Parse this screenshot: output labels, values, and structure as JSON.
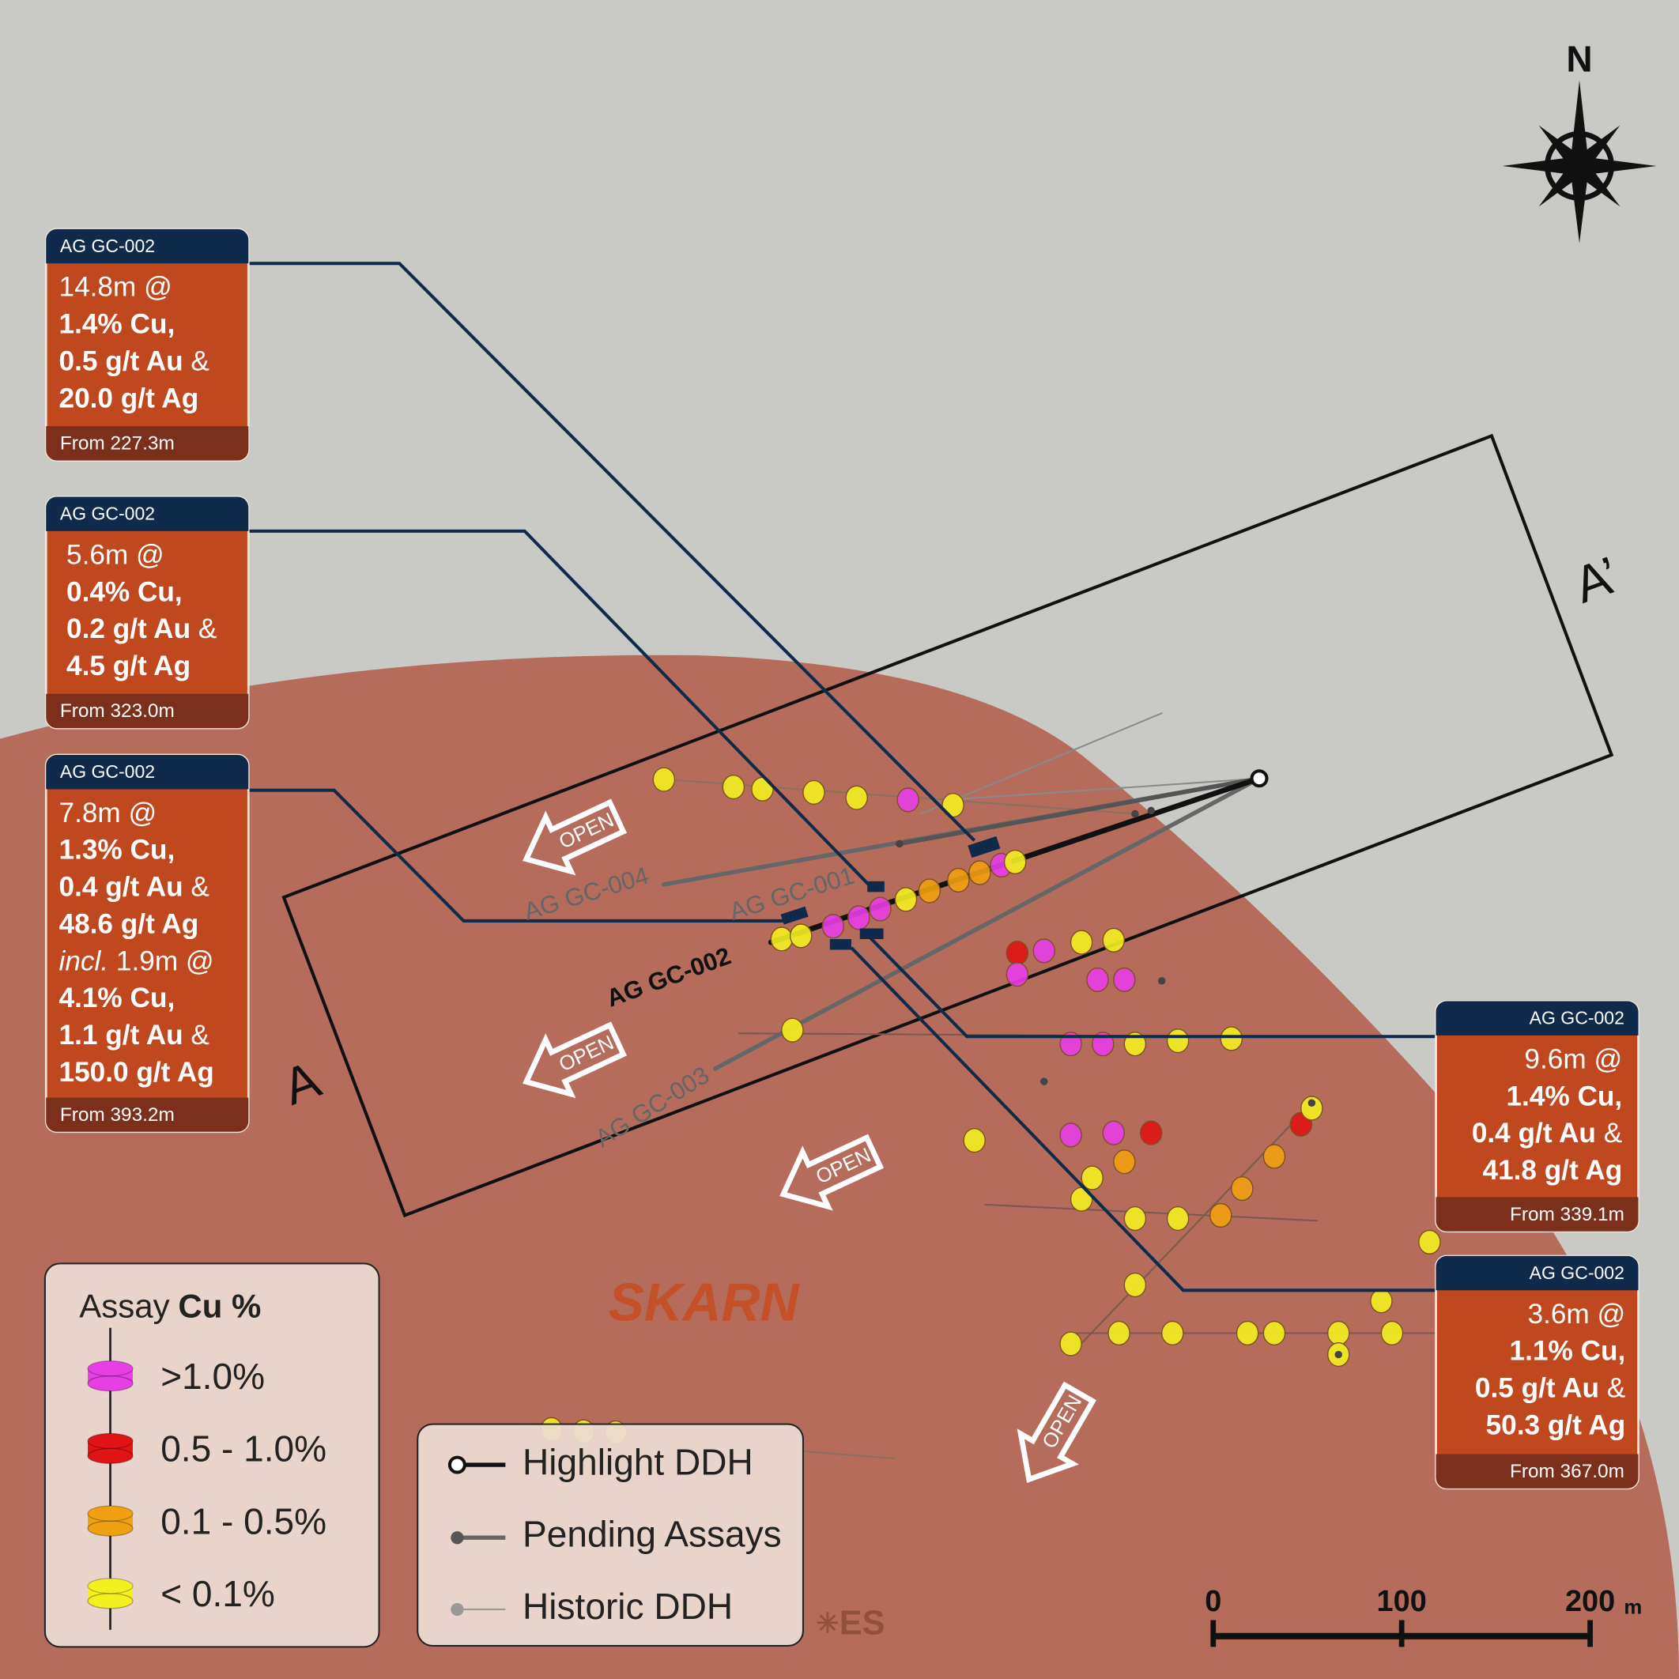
{
  "north": "N",
  "callouts": [
    {
      "hole": "AG GC-002",
      "lines": [
        [
          {
            "text": "14.8m @"
          }
        ],
        [
          {
            "text": "1.4% Cu,",
            "style": "bold"
          }
        ],
        [
          {
            "text": "0.5 g/t Au",
            "style": "bold"
          },
          {
            "text": " &"
          }
        ],
        [
          {
            "text": "20.0 g/t Ag",
            "style": "bold"
          }
        ]
      ],
      "from": "From 227.3m"
    },
    {
      "hole": "AG GC-002",
      "lines": [
        [
          {
            "text": "5.6m @"
          }
        ],
        [
          {
            "text": "0.4% Cu,",
            "style": "bold"
          }
        ],
        [
          {
            "text": "0.2 g/t Au",
            "style": "bold"
          },
          {
            "text": " &"
          }
        ],
        [
          {
            "text": "4.5 g/t Ag",
            "style": "bold"
          }
        ]
      ],
      "from": "From 323.0m"
    },
    {
      "hole": "AG GC-002",
      "lines": [
        [
          {
            "text": "7.8m @"
          }
        ],
        [
          {
            "text": "1.3% Cu,",
            "style": "bold"
          }
        ],
        [
          {
            "text": "0.4 g/t Au",
            "style": "bold"
          },
          {
            "text": " &"
          }
        ],
        [
          {
            "text": "48.6 g/t Ag",
            "style": "bold"
          }
        ],
        [
          {
            "text": "incl.",
            "style": "italic"
          },
          {
            "text": " 1.9m @"
          }
        ],
        [
          {
            "text": "4.1% Cu,",
            "style": "bold"
          }
        ],
        [
          {
            "text": "1.1 g/t Au",
            "style": "bold"
          },
          {
            "text": " &"
          }
        ],
        [
          {
            "text": "150.0 g/t Ag",
            "style": "bold"
          }
        ]
      ],
      "from": "From 393.2m"
    },
    {
      "hole": "AG GC-002",
      "lines": [
        [
          {
            "text": "9.6m @"
          }
        ],
        [
          {
            "text": "1.4% Cu,",
            "style": "bold"
          }
        ],
        [
          {
            "text": "0.4 g/t Au",
            "style": "bold"
          },
          {
            "text": " &"
          }
        ],
        [
          {
            "text": "41.8 g/t Ag",
            "style": "bold"
          }
        ]
      ],
      "from": "From 339.1m"
    },
    {
      "hole": "AG GC-002",
      "lines": [
        [
          {
            "text": "3.6m @"
          }
        ],
        [
          {
            "text": "1.1% Cu,",
            "style": "bold"
          }
        ],
        [
          {
            "text": "0.5 g/t Au",
            "style": "bold"
          },
          {
            "text": " &"
          }
        ],
        [
          {
            "text": "50.3 g/t Ag",
            "style": "bold"
          }
        ]
      ],
      "from": "From 367.0m"
    }
  ],
  "section": {
    "start": "A",
    "end": "A’"
  },
  "holes": [
    "AG GC-004",
    "AG GC-001",
    "AG GC-002",
    "AG GC-003"
  ],
  "unit": "SKARN",
  "open_labels": [
    "OPEN",
    "OPEN",
    "OPEN",
    "OPEN"
  ],
  "assay_legend": {
    "title": "Assay",
    "title_bold": "Cu %",
    "items": [
      {
        "label": ">1.0%",
        "color": "#e83ee6"
      },
      {
        "label": "0.5 - 1.0%",
        "color": "#e01414"
      },
      {
        "label": "0.1 - 0.5%",
        "color": "#f0a010"
      },
      {
        "label": "< 0.1%",
        "color": "#f4f020"
      }
    ]
  },
  "ddh_legend": {
    "items": [
      {
        "label": "Highlight DDH"
      },
      {
        "label": "Pending Assays"
      },
      {
        "label": "Historic DDH"
      }
    ]
  },
  "scale": {
    "ticks": [
      0,
      100,
      200
    ],
    "unit": "m"
  },
  "logo": "ES"
}
